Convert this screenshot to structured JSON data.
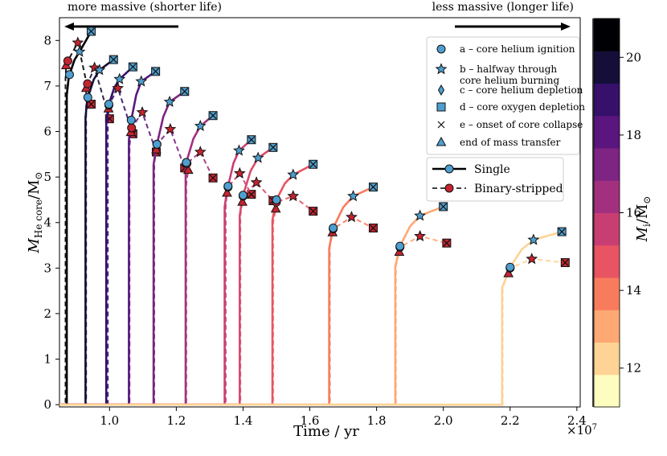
{
  "chart_data": {
    "type": "line",
    "xlabel": "Time / yr",
    "ylabel": "M_He core / M_⊙",
    "x_offset_label": "×10^7",
    "xlim": [
      0.85,
      2.41
    ],
    "ylim": [
      -0.05,
      8.5
    ],
    "x_ticks": [
      1.0,
      1.2,
      1.4,
      1.6,
      1.8,
      2.0,
      2.2,
      2.4
    ],
    "x_tick_labels": [
      "1.0",
      "1.2",
      "1.4",
      "1.6",
      "1.8",
      "2.0",
      "2.2",
      "2.4"
    ],
    "y_ticks": [
      0,
      1,
      2,
      3,
      4,
      5,
      6,
      7,
      8
    ],
    "y_tick_labels": [
      "0",
      "1",
      "2",
      "3",
      "4",
      "5",
      "6",
      "7",
      "8"
    ],
    "annotations": {
      "left": "more massive (shorter life)",
      "right": "less massive (longer life)"
    },
    "colorbar": {
      "label": "M_i / M_⊙",
      "range": [
        11,
        21
      ],
      "ticks": [
        12,
        14,
        16,
        18,
        20
      ],
      "tick_labels": [
        "12",
        "14",
        "16",
        "18",
        "20"
      ],
      "colors": [
        "#fcfdbf",
        "#fed395",
        "#fea873",
        "#f97b5d",
        "#e95462",
        "#c83e73",
        "#a3307e",
        "#7e2482",
        "#5a167e",
        "#36106b",
        "#150e38",
        "#000004"
      ]
    },
    "legend_markers": [
      {
        "symbol": "circle",
        "label": "a – core helium ignition"
      },
      {
        "symbol": "star",
        "label": "b – halfway through",
        "label2": "core helium burning"
      },
      {
        "symbol": "diamond",
        "label": "c – core helium depletion"
      },
      {
        "symbol": "square",
        "label": "d – core oxygen depletion"
      },
      {
        "symbol": "cross",
        "label": "e – onset of core collapse"
      },
      {
        "symbol": "triangle",
        "label": "end of mass transfer"
      }
    ],
    "legend_lines": [
      {
        "style": "solid",
        "label": "Single",
        "marker_color": "#4e9fcf"
      },
      {
        "style": "dashed",
        "label": "Binary-stripped",
        "marker_color": "#c42430"
      }
    ],
    "series": [
      {
        "mi": 21,
        "color": "#000004",
        "single": {
          "t_step": 0.872,
          "rise": [
            [
              0.872,
              7.1
            ],
            [
              0.88,
              7.25
            ]
          ],
          "ignition": [
            0.88,
            7.25
          ],
          "halfway": [
            0.91,
            7.75
          ],
          "end": [
            0.945,
            8.2
          ]
        },
        "binary": {
          "t_step": 0.868,
          "ignition": [
            0.875,
            7.55
          ],
          "halfway": [
            0.905,
            7.95
          ],
          "end": [
            0.945,
            6.6
          ],
          "triangle": [
            0.87,
            7.45
          ]
        }
      },
      {
        "mi": 20,
        "color": "#150e38",
        "single": {
          "t_step": 0.928,
          "ignition": [
            0.935,
            6.75
          ],
          "halfway": [
            0.97,
            7.35
          ],
          "end": [
            1.012,
            7.58
          ]
        },
        "binary": {
          "t_step": 0.93,
          "ignition": [
            0.934,
            7.05
          ],
          "halfway": [
            0.955,
            7.4
          ],
          "end": [
            1.0,
            6.28
          ],
          "triangle": [
            0.93,
            6.95
          ]
        }
      },
      {
        "mi": 19,
        "color": "#36106b",
        "single": {
          "t_step": 0.99,
          "ignition": [
            0.998,
            6.6
          ],
          "halfway": [
            1.03,
            7.15
          ],
          "end": [
            1.07,
            7.42
          ]
        },
        "binary": {
          "t_step": 0.995,
          "ignition": [
            0.998,
            6.58
          ],
          "halfway": [
            1.025,
            6.95
          ],
          "end": [
            1.07,
            5.95
          ],
          "triangle": [
            0.997,
            6.5
          ]
        }
      },
      {
        "mi": 18,
        "color": "#5a167e",
        "single": {
          "t_step": 1.058,
          "ignition": [
            1.065,
            6.25
          ],
          "halfway": [
            1.095,
            7.1
          ],
          "end": [
            1.138,
            7.32
          ]
        },
        "binary": {
          "t_step": 1.06,
          "ignition": [
            1.066,
            6.08
          ],
          "halfway": [
            1.098,
            6.42
          ],
          "end": [
            1.14,
            5.55
          ],
          "triangle": [
            1.064,
            5.98
          ]
        }
      },
      {
        "mi": 17,
        "color": "#7e2482",
        "single": {
          "t_step": 1.132,
          "ignition": [
            1.142,
            5.72
          ],
          "halfway": [
            1.18,
            6.65
          ],
          "end": [
            1.225,
            6.88
          ]
        },
        "binary": {
          "t_step": 1.134,
          "ignition": [
            1.142,
            5.72
          ],
          "halfway": [
            1.182,
            6.05
          ],
          "end": [
            1.225,
            5.2
          ],
          "triangle": [
            1.14,
            5.6
          ]
        }
      },
      {
        "mi": 16.5,
        "color": "#a3307e",
        "single": {
          "t_step": 1.228,
          "ignition": [
            1.23,
            5.32
          ],
          "halfway": [
            1.272,
            6.12
          ],
          "end": [
            1.31,
            6.35
          ]
        },
        "binary": {
          "t_step": 1.23,
          "ignition": [
            1.232,
            5.3
          ],
          "halfway": [
            1.272,
            5.55
          ],
          "end": [
            1.31,
            4.98
          ],
          "triangle": [
            1.236,
            5.15
          ]
        }
      },
      {
        "mi": 16,
        "color": "#c83e73",
        "single": {
          "t_step": 1.345,
          "ignition": [
            1.355,
            4.8
          ],
          "halfway": [
            1.388,
            5.58
          ],
          "end": [
            1.425,
            5.82
          ]
        },
        "binary": {
          "t_step": 1.348,
          "ignition": [
            1.355,
            4.78
          ],
          "halfway": [
            1.39,
            5.08
          ],
          "end": [
            1.425,
            4.62
          ],
          "triangle": [
            1.352,
            4.65
          ]
        }
      },
      {
        "mi": 15.5,
        "color": "#d94a6b",
        "single": {
          "t_step": 1.39,
          "ignition": [
            1.4,
            4.6
          ],
          "halfway": [
            1.445,
            5.42
          ],
          "end": [
            1.49,
            5.65
          ]
        },
        "binary": {
          "t_step": 1.392,
          "ignition": [
            1.4,
            4.58
          ],
          "halfway": [
            1.44,
            4.88
          ],
          "end": [
            1.49,
            4.48
          ],
          "triangle": [
            1.398,
            4.45
          ]
        }
      },
      {
        "mi": 15,
        "color": "#e95462",
        "single": {
          "t_step": 1.488,
          "ignition": [
            1.5,
            4.5
          ],
          "halfway": [
            1.55,
            5.05
          ],
          "end": [
            1.61,
            5.28
          ]
        },
        "binary": {
          "t_step": 1.49,
          "ignition": [
            1.5,
            4.45
          ],
          "halfway": [
            1.55,
            4.58
          ],
          "end": [
            1.61,
            4.25
          ],
          "triangle": [
            1.498,
            4.3
          ]
        }
      },
      {
        "mi": 14,
        "color": "#f97b5d",
        "single": {
          "t_step": 1.658,
          "ignition": [
            1.67,
            3.88
          ],
          "halfway": [
            1.73,
            4.58
          ],
          "end": [
            1.79,
            4.78
          ]
        },
        "binary": {
          "t_step": 1.66,
          "ignition": [
            1.67,
            3.86
          ],
          "halfway": [
            1.725,
            4.12
          ],
          "end": [
            1.79,
            3.88
          ],
          "triangle": [
            1.668,
            3.78
          ]
        }
      },
      {
        "mi": 13,
        "color": "#fea873",
        "single": {
          "t_step": 1.856,
          "ignition": [
            1.87,
            3.48
          ],
          "halfway": [
            1.93,
            4.15
          ],
          "end": [
            2.0,
            4.35
          ]
        },
        "binary": {
          "t_step": 1.858,
          "ignition": [
            1.87,
            3.46
          ],
          "halfway": [
            1.93,
            3.7
          ],
          "end": [
            2.01,
            3.55
          ],
          "triangle": [
            1.868,
            3.35
          ]
        }
      },
      {
        "mi": 12,
        "color": "#fed395",
        "single": {
          "t_step": 2.176,
          "ignition": [
            2.2,
            3.02
          ],
          "halfway": [
            2.27,
            3.62
          ],
          "end": [
            2.355,
            3.8
          ]
        },
        "binary": {
          "t_step": 2.178,
          "ignition": [
            2.2,
            3.0
          ],
          "halfway": [
            2.265,
            3.2
          ],
          "end": [
            2.365,
            3.12
          ],
          "triangle": [
            2.195,
            2.88
          ]
        }
      }
    ]
  }
}
